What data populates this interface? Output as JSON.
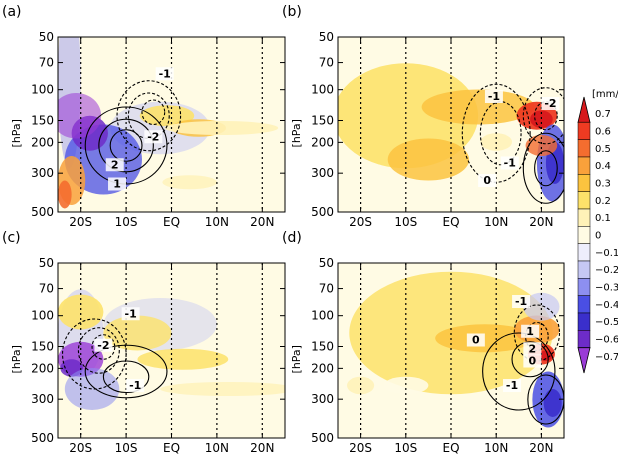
{
  "chart_data": {
    "type": "heatmap",
    "ylabel": "[hPa]",
    "y_ticks": [
      "50",
      "70",
      "100",
      "150",
      "200",
      "300",
      "500"
    ],
    "y_values": [
      50,
      70,
      100,
      150,
      200,
      300,
      500
    ],
    "y_scale": "log",
    "x_ticks": [
      "20S",
      "10S",
      "EQ",
      "10N",
      "20N"
    ],
    "x_values": [
      -20,
      -10,
      0,
      10,
      20
    ],
    "xlim": [
      -25,
      25
    ],
    "ylim": [
      500,
      50
    ],
    "colorbar": {
      "unit": "[mm/s]",
      "levels": [
        "0.7",
        "0.6",
        "0.5",
        "0.4",
        "0.3",
        "0.2",
        "0.1",
        "0",
        "−0.1",
        "−0.2",
        "−0.3",
        "−0.4",
        "−0.5",
        "−0.6",
        "−0.7"
      ],
      "colors": [
        "#d7191c",
        "#ee3b22",
        "#f46d2f",
        "#f9a13b",
        "#fbc33f",
        "#fde26a",
        "#fff2b8",
        "#fffbe4",
        "#eeeefc",
        "#c6c8f4",
        "#8d8ff0",
        "#4a4fe4",
        "#3a2fcb",
        "#6d2cc8",
        "#9a3bd6"
      ]
    },
    "panels": [
      {
        "label": "(a)",
        "contour_labels": [
          "-1",
          "-2",
          "2",
          "1"
        ]
      },
      {
        "label": "(b)",
        "contour_labels": [
          "-1",
          "-2",
          "-1",
          "0"
        ]
      },
      {
        "label": "(c)",
        "contour_labels": [
          "-1",
          "-2",
          "-1"
        ]
      },
      {
        "label": "(d)",
        "contour_labels": [
          "-1",
          "0",
          "1",
          "2",
          "0",
          "-1"
        ]
      }
    ]
  }
}
